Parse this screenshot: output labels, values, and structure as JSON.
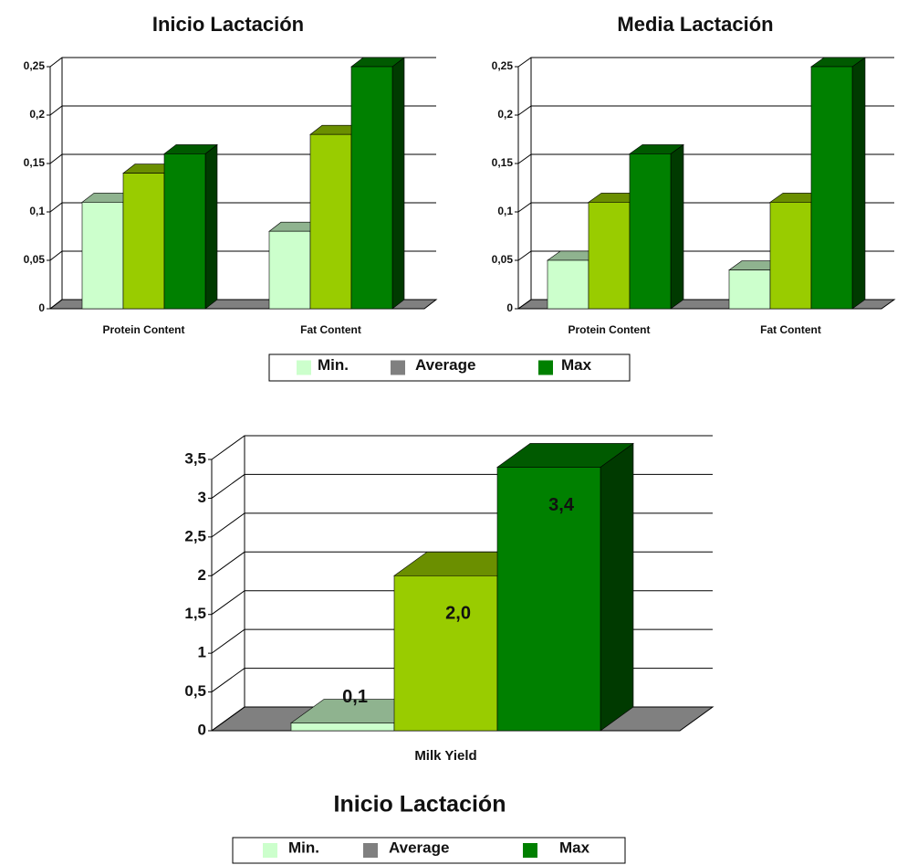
{
  "chart_data": [
    {
      "type": "bar3d",
      "title": "Inicio Lactación",
      "categories": [
        "Protein Content",
        "Fat Content"
      ],
      "series": [
        {
          "name": "Min.",
          "color": "#ccffcc",
          "legend_color": "#ccffcc",
          "values": [
            0.11,
            0.08
          ]
        },
        {
          "name": "Average",
          "color": "#99cc00",
          "legend_color": "#808080",
          "values": [
            0.14,
            0.18
          ]
        },
        {
          "name": "Max",
          "color": "#008000",
          "legend_color": "#008000",
          "values": [
            0.16,
            0.25
          ]
        }
      ],
      "ylim": [
        0,
        0.25
      ],
      "yticks": [
        0,
        {
          "value": 0.05,
          "label": "0,05"
        },
        {
          "value": 0.1,
          "label": "0,1"
        },
        {
          "value": 0.15,
          "label": "0,15"
        },
        {
          "value": 0.2,
          "label": "0,2"
        },
        {
          "value": 0.25,
          "label": "0,25"
        }
      ],
      "grid": true,
      "legend": "bottom"
    },
    {
      "type": "bar3d",
      "title": "Media Lactación",
      "categories": [
        "Protein Content",
        "Fat Content"
      ],
      "series": [
        {
          "color": "#ccffcc",
          "values": [
            0.05,
            0.04
          ]
        },
        {
          "color": "#99cc00",
          "values": [
            0.11,
            0.11
          ]
        },
        {
          "color": "#008000",
          "values": [
            0.16,
            0.25
          ]
        }
      ],
      "ylim": [
        0,
        0.25
      ],
      "yticks": [
        0,
        {
          "value": 0.05,
          "label": "0,05"
        },
        {
          "value": 0.1,
          "label": "0,1"
        },
        {
          "value": 0.15,
          "label": "0,15"
        },
        {
          "value": 0.2,
          "label": "0,2"
        },
        {
          "value": 0.25,
          "label": "0,25"
        }
      ],
      "grid": true,
      "legend": false
    },
    {
      "type": "bar3d",
      "title": "Inicio Lactación",
      "categories": [
        "Milk Yield"
      ],
      "series": [
        {
          "name": "Min.",
          "color": "#ccffcc",
          "legend_color": "#ccffcc",
          "values": [
            0.1
          ],
          "value_labels": [
            "0,1"
          ]
        },
        {
          "name": "Average",
          "color": "#99cc00",
          "legend_color": "#808080",
          "values": [
            2.0
          ],
          "value_labels": [
            "2,0"
          ]
        },
        {
          "name": "Max",
          "color": "#008000",
          "legend_color": "#008000",
          "values": [
            3.4
          ],
          "value_labels": [
            "3,4"
          ]
        }
      ],
      "ylim": [
        0,
        3.5
      ],
      "yticks": [
        0,
        {
          "value": 0.5,
          "label": "0,5"
        },
        1,
        {
          "value": 1.5,
          "label": "1,5"
        },
        2,
        {
          "value": 2.5,
          "label": "2,5"
        },
        3,
        {
          "value": 3.5,
          "label": "3,5"
        }
      ],
      "grid": true,
      "legend": "bottom"
    }
  ]
}
